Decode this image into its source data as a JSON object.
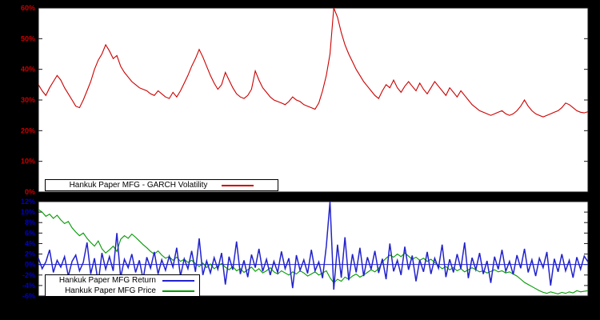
{
  "page": {
    "background_color": "#000000",
    "plot_background_color": "#ffffff"
  },
  "chart_data": [
    {
      "type": "line",
      "title": "Hankuk Paper MFG - GARCH Volatility",
      "xlabel": "",
      "ylabel": "",
      "ylim": [
        0,
        60
      ],
      "grid": false,
      "legend_position": "bottom-left",
      "tick_color": "#cc0000",
      "ytick_values": [
        60,
        50,
        40,
        30,
        20,
        10,
        0
      ],
      "ytick_labels": [
        "60%",
        "50%",
        "40%",
        "30%",
        "20%",
        "10%",
        "0%"
      ],
      "series": [
        {
          "name": "Hankuk Paper MFG - GARCH Volatility",
          "color": "#cc0000",
          "values": [
            35,
            33,
            31.5,
            34,
            36,
            38,
            36.5,
            34,
            32,
            30,
            28,
            27.5,
            30,
            33,
            36,
            40,
            43,
            45,
            48,
            46,
            43.5,
            44.5,
            41,
            39,
            37.5,
            36,
            35,
            34,
            33.5,
            33,
            32,
            31.5,
            33,
            32,
            31,
            30.5,
            32.5,
            31,
            33,
            35.5,
            38,
            41,
            43.5,
            46.5,
            44,
            41,
            38,
            35.5,
            33.5,
            35,
            39,
            36.5,
            34,
            32,
            31,
            30.5,
            31.5,
            33.5,
            39.5,
            36.5,
            34,
            32.5,
            31,
            30,
            29.5,
            29,
            28.5,
            29.5,
            31,
            30,
            29.5,
            28.5,
            28,
            27.5,
            27,
            29,
            33,
            38,
            45,
            60,
            57,
            52,
            48,
            45,
            42.5,
            40,
            38,
            36,
            34.5,
            33,
            31.5,
            30.5,
            33,
            35,
            34,
            36.5,
            34,
            32.5,
            34.5,
            36,
            34.5,
            33,
            35.5,
            33.5,
            32,
            34,
            36,
            34.5,
            33,
            31.5,
            34,
            32.5,
            31,
            33,
            31.5,
            30,
            28.5,
            27.5,
            26.5,
            26,
            25.5,
            25,
            25.5,
            26,
            26.5,
            25.5,
            25,
            25.5,
            26.5,
            28,
            30,
            28,
            26.5,
            25.5,
            25,
            24.5,
            25,
            25.5,
            26,
            26.5,
            27.5,
            29,
            28.5,
            27.5,
            26.5,
            26,
            25.8,
            26.2
          ]
        }
      ]
    },
    {
      "type": "line",
      "title": "",
      "xlabel": "",
      "ylabel": "",
      "ylim": [
        -6,
        12
      ],
      "grid": false,
      "legend_position": "bottom-left",
      "tick_color": "#0000cc",
      "zero_line_color": "#2222cc",
      "ytick_values": [
        12,
        10,
        8,
        6,
        4,
        2,
        0,
        -2,
        -4,
        -6
      ],
      "ytick_labels": [
        "12%",
        "10%",
        "8%",
        "6%",
        "4%",
        "2%",
        "0%",
        "-2%",
        "-4%",
        "-6%"
      ],
      "series": [
        {
          "name": "Hankuk Paper MFG Price",
          "color": "#009900",
          "values": [
            10.5,
            10.0,
            9.2,
            9.6,
            8.8,
            9.4,
            8.5,
            7.8,
            8.2,
            7.0,
            6.2,
            5.5,
            6.0,
            5.0,
            4.2,
            3.5,
            4.5,
            3.0,
            2.2,
            2.8,
            3.5,
            2.5,
            4.8,
            5.5,
            5.0,
            5.8,
            5.2,
            4.5,
            3.8,
            3.2,
            2.5,
            2.0,
            2.6,
            1.8,
            1.2,
            1.5,
            0.8,
            1.4,
            0.6,
            1.0,
            0.4,
            0.8,
            0.2,
            -0.4,
            0.3,
            -0.6,
            0.1,
            -0.8,
            -0.3,
            0.2,
            -0.5,
            -1.0,
            -0.4,
            -1.2,
            -0.8,
            -1.5,
            -1.0,
            -0.5,
            -1.3,
            -0.8,
            -1.6,
            -1.2,
            -0.6,
            -1.4,
            -1.8,
            -1.2,
            -1.6,
            -2.0,
            -1.4,
            -1.8,
            -1.2,
            -1.6,
            -2.2,
            -1.8,
            -1.4,
            -2.0,
            -1.6,
            -1.2,
            -2.5,
            -3.5,
            -2.8,
            -3.2,
            -2.4,
            -2.8,
            -2.2,
            -1.8,
            -2.4,
            -2.0,
            -1.5,
            -1.0,
            -1.4,
            -0.8,
            0.5,
            1.2,
            1.8,
            1.4,
            2.0,
            1.5,
            2.2,
            1.6,
            1.0,
            1.4,
            0.8,
            1.2,
            0.6,
            1.0,
            0.4,
            -0.2,
            -0.8,
            -0.4,
            -1.0,
            -0.6,
            -1.2,
            -0.8,
            -1.4,
            -1.0,
            -0.6,
            -1.0,
            -1.4,
            -1.2,
            -1.6,
            -1.3,
            -1.0,
            -1.4,
            -1.2,
            -1.6,
            -1.4,
            -1.8,
            -2.2,
            -2.8,
            -3.4,
            -3.8,
            -4.2,
            -4.6,
            -5.0,
            -5.3,
            -5.5,
            -5.2,
            -5.4,
            -5.6,
            -5.3,
            -5.5,
            -5.2,
            -5.4,
            -5.0,
            -5.2,
            -5.1,
            -5.0
          ]
        },
        {
          "name": "Hankuk Paper MFG Return",
          "color": "#2222cc",
          "values": [
            1.2,
            -0.8,
            0.5,
            2.8,
            -1.5,
            0.8,
            -0.5,
            1.5,
            -2.2,
            0.6,
            1.8,
            -1.2,
            0.4,
            4.2,
            -1.8,
            1.2,
            -3.5,
            2.2,
            -0.9,
            1.5,
            -1.2,
            6.0,
            -2.5,
            1.0,
            -0.6,
            2.0,
            -1.5,
            0.8,
            -2.8,
            1.4,
            -0.7,
            2.4,
            -1.8,
            0.9,
            -1.1,
            1.6,
            -0.5,
            3.2,
            -2.2,
            1.1,
            -0.8,
            2.6,
            -1.4,
            5.0,
            -2.0,
            0.7,
            -1.6,
            1.3,
            -0.9,
            2.2,
            -3.8,
            1.5,
            -1.0,
            4.4,
            -1.8,
            0.8,
            -2.4,
            1.9,
            -0.6,
            3.0,
            -1.3,
            1.0,
            -2.0,
            0.6,
            -1.5,
            2.5,
            -0.8,
            1.2,
            -4.5,
            1.8,
            -1.1,
            0.9,
            -1.7,
            2.8,
            -1.2,
            0.5,
            -2.6,
            3.5,
            12.0,
            -4.8,
            3.8,
            -2.5,
            5.2,
            -3.0,
            2.0,
            -1.5,
            3.2,
            -2.2,
            1.4,
            -0.9,
            2.6,
            -1.6,
            1.1,
            -2.8,
            4.0,
            -1.3,
            0.8,
            -2.0,
            3.4,
            -1.0,
            1.7,
            -3.2,
            0.9,
            -1.4,
            2.4,
            -1.8,
            1.2,
            -0.7,
            3.8,
            -2.4,
            1.0,
            -1.5,
            2.0,
            -0.8,
            4.2,
            -2.6,
            1.3,
            -1.0,
            2.2,
            -1.8,
            0.7,
            -3.5,
            1.5,
            -0.9,
            2.8,
            -1.3,
            0.6,
            -1.9,
            1.8,
            -0.7,
            3.0,
            -1.5,
            0.9,
            -2.2,
            1.2,
            -0.6,
            2.4,
            -4.0,
            1.1,
            -1.4,
            2.0,
            -1.2,
            0.8,
            -2.5,
            1.4,
            -0.9,
            1.6,
            0.5
          ]
        }
      ]
    }
  ],
  "legends": {
    "volatility_label": "Hankuk Paper MFG - GARCH Volatility",
    "return_label": "Hankuk Paper MFG Return",
    "price_label": "Hankuk Paper MFG Price"
  }
}
